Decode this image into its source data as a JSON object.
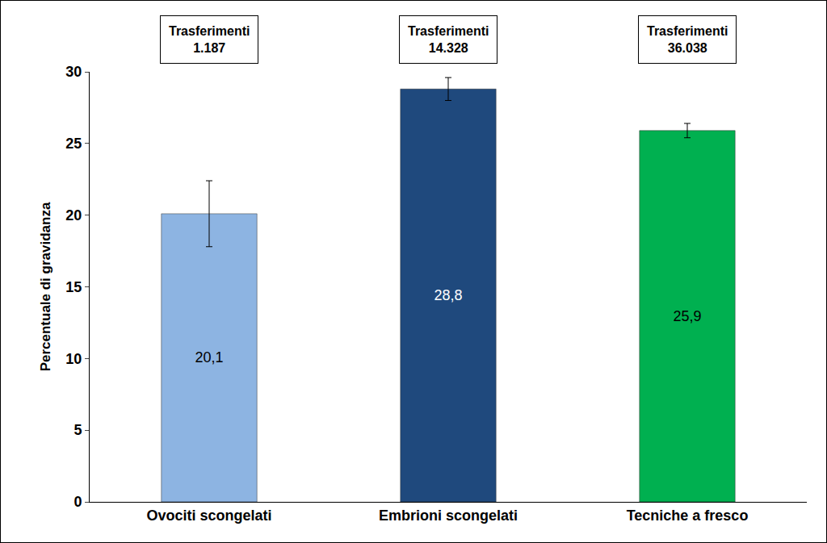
{
  "chart_data": {
    "type": "bar",
    "categories": [
      "Ovociti scongelati",
      "Embrioni scongelati",
      "Tecniche a fresco"
    ],
    "values": [
      20.1,
      28.8,
      25.9
    ],
    "value_labels": [
      "20,1",
      "28,8",
      "25,9"
    ],
    "errors": [
      2.3,
      0.8,
      0.5
    ],
    "colors": [
      "#8db4e2",
      "#1f497d",
      "#00b050"
    ],
    "y_label": "Percentuale di gravidanza",
    "ylim": [
      0,
      30
    ],
    "yticks": [
      0,
      5,
      10,
      15,
      20,
      25,
      30
    ],
    "grid": false,
    "data_labels": true,
    "annotations": [
      {
        "category": "Ovociti scongelati",
        "text": "Trasferimenti\n1.187"
      },
      {
        "category": "Embrioni scongelati",
        "text": "Trasferimenti\n14.328"
      },
      {
        "category": "Tecniche a fresco",
        "text": "Trasferimenti\n36.038"
      }
    ]
  }
}
